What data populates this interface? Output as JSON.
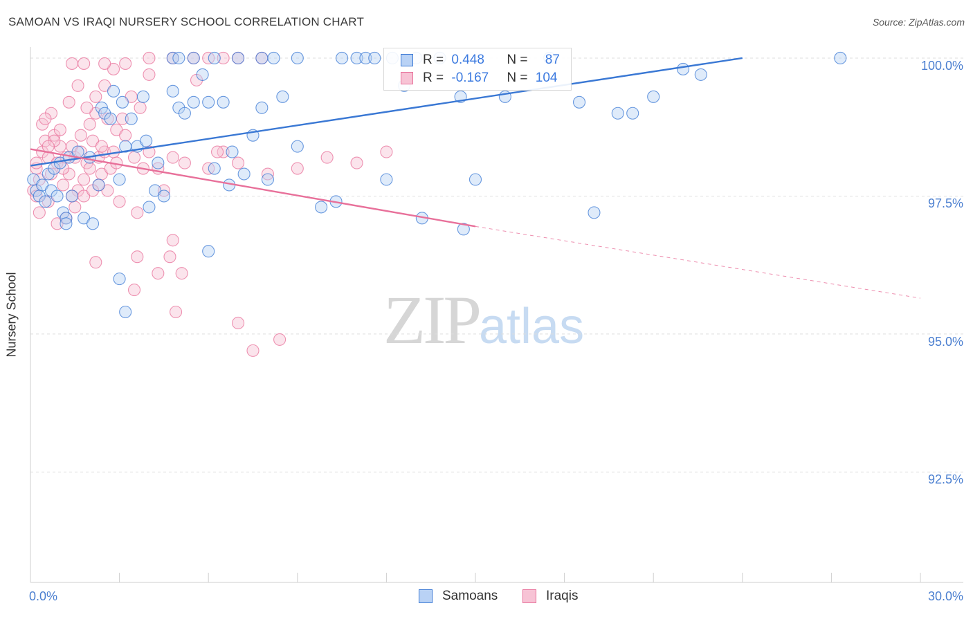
{
  "header": {
    "title": "SAMOAN VS IRAQI NURSERY SCHOOL CORRELATION CHART",
    "source": "Source: ZipAtlas.com"
  },
  "watermark": {
    "zip": "ZIP",
    "atlas": "atlas"
  },
  "colors": {
    "samoans": "#3a78d4",
    "samoans_fill": "#b9d2f5",
    "iraqis": "#e8709a",
    "iraqis_fill": "#f7c3d5",
    "grid": "#dddddd",
    "axis_text": "#4b7fd0"
  },
  "stats_legend": {
    "samoans": {
      "r_label": "R = ",
      "r_value": "0.448",
      "n_label": "N = ",
      "n_value": "87"
    },
    "iraqis": {
      "r_label": "R = ",
      "r_value": "-0.167",
      "n_label": "N = ",
      "n_value": "104"
    }
  },
  "bottom_legend": {
    "samoans": "Samoans",
    "iraqis": "Iraqis"
  },
  "chart_data": {
    "type": "scatter",
    "title": "SAMOAN VS IRAQI NURSERY SCHOOL CORRELATION CHART",
    "xlabel": "",
    "ylabel": "Nursery School",
    "xlim": [
      0,
      30
    ],
    "ylim": [
      90.5,
      100.2
    ],
    "x_tick_labels": [
      "0.0%",
      "30.0%"
    ],
    "y_ticks": [
      92.5,
      95.0,
      97.5,
      100.0
    ],
    "y_tick_labels": [
      "92.5%",
      "95.0%",
      "97.5%",
      "100.0%"
    ],
    "grid": "horizontal dashed",
    "legend_position": "top-center",
    "series": [
      {
        "name": "Samoans",
        "r": 0.448,
        "n": 87,
        "trend": {
          "x": [
            0.0,
            24.0
          ],
          "y": [
            98.05,
            100.0
          ],
          "dashed_extension": false
        },
        "points": [
          [
            0.1,
            97.8
          ],
          [
            0.2,
            97.6
          ],
          [
            0.3,
            97.5
          ],
          [
            0.4,
            97.7
          ],
          [
            0.5,
            97.4
          ],
          [
            0.6,
            97.9
          ],
          [
            0.7,
            97.6
          ],
          [
            0.8,
            98.0
          ],
          [
            0.9,
            97.5
          ],
          [
            1.0,
            98.1
          ],
          [
            1.1,
            97.2
          ],
          [
            1.2,
            97.1
          ],
          [
            1.3,
            98.2
          ],
          [
            1.4,
            97.5
          ],
          [
            1.6,
            98.3
          ],
          [
            1.8,
            97.1
          ],
          [
            2.0,
            98.2
          ],
          [
            2.1,
            97.0
          ],
          [
            2.3,
            97.7
          ],
          [
            2.4,
            99.1
          ],
          [
            2.5,
            99.0
          ],
          [
            2.7,
            98.9
          ],
          [
            2.8,
            99.4
          ],
          [
            3.0,
            97.8
          ],
          [
            3.1,
            99.2
          ],
          [
            3.2,
            98.4
          ],
          [
            3.4,
            98.9
          ],
          [
            3.6,
            98.4
          ],
          [
            3.8,
            99.3
          ],
          [
            3.9,
            98.5
          ],
          [
            4.0,
            97.3
          ],
          [
            4.2,
            97.6
          ],
          [
            4.3,
            98.1
          ],
          [
            4.5,
            97.5
          ],
          [
            4.8,
            99.4
          ],
          [
            5.0,
            99.1
          ],
          [
            5.2,
            99.0
          ],
          [
            5.5,
            99.2
          ],
          [
            5.8,
            99.7
          ],
          [
            6.0,
            99.2
          ],
          [
            6.2,
            98.0
          ],
          [
            6.5,
            99.2
          ],
          [
            6.7,
            97.7
          ],
          [
            6.8,
            98.3
          ],
          [
            7.2,
            97.9
          ],
          [
            7.5,
            98.6
          ],
          [
            7.8,
            99.1
          ],
          [
            8.0,
            97.8
          ],
          [
            8.5,
            99.3
          ],
          [
            9.0,
            98.4
          ],
          [
            4.8,
            100.0
          ],
          [
            5.0,
            100.0
          ],
          [
            5.5,
            100.0
          ],
          [
            6.2,
            100.0
          ],
          [
            7.0,
            100.0
          ],
          [
            7.8,
            100.0
          ],
          [
            8.2,
            100.0
          ],
          [
            9.0,
            100.0
          ],
          [
            10.5,
            100.0
          ],
          [
            11.0,
            100.0
          ],
          [
            11.3,
            100.0
          ],
          [
            11.6,
            100.0
          ],
          [
            12.2,
            100.0
          ],
          [
            13.0,
            100.0
          ],
          [
            13.8,
            100.0
          ],
          [
            14.5,
            99.3
          ],
          [
            16.0,
            99.3
          ],
          [
            17.5,
            100.0
          ],
          [
            18.5,
            99.2
          ],
          [
            19.8,
            99.0
          ],
          [
            20.3,
            99.0
          ],
          [
            21.0,
            99.3
          ],
          [
            22.0,
            99.8
          ],
          [
            22.6,
            99.7
          ],
          [
            27.3,
            100.0
          ],
          [
            15.0,
            97.8
          ],
          [
            9.8,
            97.3
          ],
          [
            10.3,
            97.4
          ],
          [
            12.0,
            97.8
          ],
          [
            12.6,
            99.5
          ],
          [
            13.2,
            97.1
          ],
          [
            14.6,
            96.9
          ],
          [
            19.0,
            97.2
          ],
          [
            6.0,
            96.5
          ],
          [
            3.0,
            96.0
          ],
          [
            3.2,
            95.4
          ],
          [
            1.2,
            97.0
          ]
        ]
      },
      {
        "name": "Iraqis",
        "r": -0.167,
        "n": 104,
        "trend": {
          "x": [
            0.0,
            15.0
          ],
          "y": [
            98.35,
            96.95
          ],
          "dashed_to": [
            30.0,
            95.65
          ]
        },
        "points": [
          [
            0.1,
            97.6
          ],
          [
            0.2,
            98.0
          ],
          [
            0.3,
            97.8
          ],
          [
            0.4,
            98.3
          ],
          [
            0.5,
            98.5
          ],
          [
            0.6,
            98.2
          ],
          [
            0.7,
            97.9
          ],
          [
            0.8,
            98.6
          ],
          [
            0.9,
            98.1
          ],
          [
            1.0,
            98.4
          ],
          [
            1.1,
            97.7
          ],
          [
            1.2,
            98.2
          ],
          [
            1.3,
            97.9
          ],
          [
            1.4,
            98.4
          ],
          [
            1.5,
            98.2
          ],
          [
            1.6,
            97.6
          ],
          [
            1.7,
            98.3
          ],
          [
            1.8,
            97.8
          ],
          [
            1.9,
            98.1
          ],
          [
            2.0,
            98.0
          ],
          [
            2.1,
            98.5
          ],
          [
            2.2,
            99.0
          ],
          [
            2.3,
            98.2
          ],
          [
            2.4,
            97.9
          ],
          [
            2.5,
            98.3
          ],
          [
            2.6,
            97.6
          ],
          [
            2.7,
            98.0
          ],
          [
            2.8,
            98.3
          ],
          [
            2.9,
            98.1
          ],
          [
            3.0,
            97.4
          ],
          [
            0.3,
            97.2
          ],
          [
            0.6,
            97.4
          ],
          [
            0.9,
            97.0
          ],
          [
            1.2,
            97.1
          ],
          [
            1.5,
            97.3
          ],
          [
            0.4,
            98.8
          ],
          [
            0.7,
            99.0
          ],
          [
            1.0,
            98.7
          ],
          [
            1.3,
            99.2
          ],
          [
            1.6,
            99.5
          ],
          [
            1.9,
            99.1
          ],
          [
            2.2,
            99.3
          ],
          [
            2.5,
            99.5
          ],
          [
            2.8,
            99.8
          ],
          [
            3.1,
            98.9
          ],
          [
            3.4,
            99.3
          ],
          [
            3.7,
            99.1
          ],
          [
            4.0,
            99.7
          ],
          [
            0.5,
            98.9
          ],
          [
            0.8,
            98.5
          ],
          [
            1.1,
            98.0
          ],
          [
            1.4,
            97.5
          ],
          [
            1.7,
            98.6
          ],
          [
            2.0,
            98.8
          ],
          [
            2.3,
            97.7
          ],
          [
            2.6,
            98.9
          ],
          [
            2.9,
            98.7
          ],
          [
            3.2,
            98.6
          ],
          [
            3.5,
            98.2
          ],
          [
            3.8,
            98.0
          ],
          [
            4.0,
            98.3
          ],
          [
            4.3,
            98.0
          ],
          [
            4.5,
            97.6
          ],
          [
            4.8,
            98.2
          ],
          [
            5.2,
            98.1
          ],
          [
            5.6,
            99.6
          ],
          [
            6.0,
            98.0
          ],
          [
            6.5,
            98.3
          ],
          [
            7.0,
            98.1
          ],
          [
            8.0,
            97.9
          ],
          [
            9.0,
            98.0
          ],
          [
            10.0,
            98.2
          ],
          [
            11.0,
            98.1
          ],
          [
            12.0,
            98.3
          ],
          [
            1.4,
            99.9
          ],
          [
            1.8,
            99.9
          ],
          [
            2.5,
            99.9
          ],
          [
            3.2,
            99.9
          ],
          [
            4.0,
            100.0
          ],
          [
            4.8,
            100.0
          ],
          [
            5.5,
            100.0
          ],
          [
            6.0,
            100.0
          ],
          [
            6.5,
            100.0
          ],
          [
            7.0,
            100.0
          ],
          [
            7.8,
            100.0
          ],
          [
            2.2,
            96.3
          ],
          [
            3.6,
            96.4
          ],
          [
            4.3,
            96.1
          ],
          [
            4.7,
            96.4
          ],
          [
            5.1,
            96.1
          ],
          [
            3.5,
            95.8
          ],
          [
            4.9,
            95.4
          ],
          [
            7.0,
            95.2
          ],
          [
            7.5,
            94.7
          ],
          [
            8.4,
            94.9
          ],
          [
            3.6,
            97.2
          ],
          [
            4.8,
            96.7
          ],
          [
            1.8,
            97.5
          ],
          [
            2.1,
            97.6
          ],
          [
            0.2,
            97.5
          ],
          [
            0.2,
            98.1
          ],
          [
            0.6,
            98.4
          ],
          [
            2.4,
            98.4
          ],
          [
            6.3,
            98.3
          ]
        ]
      }
    ]
  },
  "axis": {
    "ylabel": "Nursery School"
  }
}
